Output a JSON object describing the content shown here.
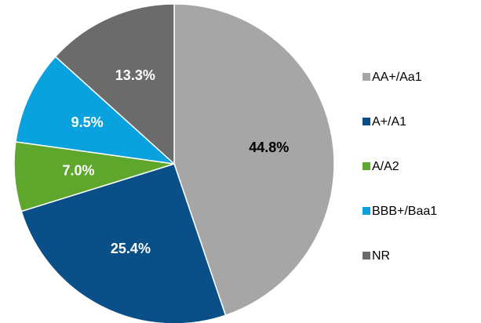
{
  "chart_data": {
    "type": "pie",
    "categories": [
      "AA+/Aa1",
      "A+/A1",
      "A/A2",
      "BBB+/Baa1",
      "NR"
    ],
    "values": [
      44.8,
      25.4,
      7.0,
      9.5,
      13.3
    ],
    "value_labels": [
      "44.8%",
      "25.4%",
      "7.0%",
      "9.5%",
      "13.3%"
    ],
    "colors": [
      "#a6a6a6",
      "#0a4f87",
      "#5ea72c",
      "#0aa1df",
      "#6b6b6b"
    ],
    "label_colors": [
      "#000000",
      "#ffffff",
      "#ffffff",
      "#ffffff",
      "#ffffff"
    ],
    "legend": "right"
  }
}
